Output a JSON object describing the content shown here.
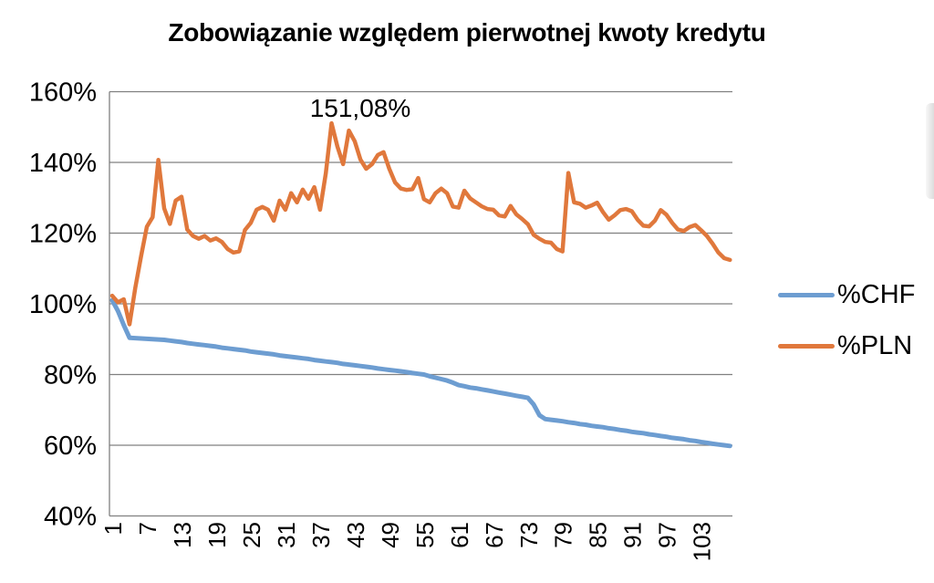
{
  "title": "Zobowiązanie względem pierwotnej kwoty kredytu",
  "colors": {
    "background": "#FFFFFF",
    "gridline": "#808080",
    "axis": "#808080",
    "text": "#000000",
    "chf_blue": "#6D9DD1",
    "pln_orange": "#E0783C"
  },
  "legend": {
    "position": "right",
    "items": [
      {
        "label": "%CHF",
        "color": "#6D9DD1"
      },
      {
        "label": "%PLN",
        "color": "#E0783C"
      }
    ]
  },
  "chart_data": {
    "type": "line",
    "title": "Zobowiązanie względem pierwotnej kwoty kredytu",
    "xlabel": "",
    "ylabel": "",
    "x_unit": "month index",
    "x_start": 1,
    "x_end": 108,
    "x_tick_labels": [
      1,
      7,
      13,
      19,
      25,
      31,
      37,
      43,
      49,
      55,
      61,
      67,
      73,
      79,
      85,
      91,
      97,
      103
    ],
    "y_tick_labels": [
      "160%",
      "140%",
      "120%",
      "100%",
      "80%",
      "60%",
      "40%"
    ],
    "y_tick_values": [
      160,
      140,
      120,
      100,
      80,
      60,
      40
    ],
    "ylim": [
      40,
      160
    ],
    "grid": "horizontal",
    "legend_position": "right",
    "annotation": {
      "text": "151,08%",
      "series": "%PLN",
      "month": 39,
      "value": 151.08
    },
    "series": [
      {
        "name": "%CHF",
        "color": "#6D9DD1",
        "stroke_width": 5,
        "values": [
          101.0,
          98.0,
          94.0,
          90.4,
          90.3,
          90.2,
          90.1,
          90.0,
          89.9,
          89.8,
          89.6,
          89.4,
          89.2,
          88.9,
          88.7,
          88.5,
          88.3,
          88.1,
          87.9,
          87.6,
          87.4,
          87.2,
          87.0,
          86.8,
          86.5,
          86.3,
          86.1,
          85.9,
          85.7,
          85.4,
          85.2,
          85.0,
          84.8,
          84.6,
          84.4,
          84.1,
          83.9,
          83.7,
          83.5,
          83.3,
          83.0,
          82.8,
          82.6,
          82.4,
          82.2,
          82.0,
          81.7,
          81.5,
          81.3,
          81.1,
          80.9,
          80.7,
          80.4,
          80.2,
          80.0,
          79.5,
          79.1,
          78.7,
          78.3,
          77.7,
          77.0,
          76.7,
          76.3,
          76.1,
          75.8,
          75.5,
          75.2,
          74.9,
          74.6,
          74.3,
          74.0,
          73.7,
          73.4,
          71.5,
          68.5,
          67.4,
          67.2,
          67.0,
          66.8,
          66.5,
          66.3,
          66.0,
          65.8,
          65.5,
          65.3,
          65.1,
          64.8,
          64.6,
          64.3,
          64.1,
          63.8,
          63.6,
          63.4,
          63.1,
          62.9,
          62.6,
          62.4,
          62.1,
          61.9,
          61.7,
          61.4,
          61.2,
          60.9,
          60.7,
          60.4,
          60.2,
          60.0,
          59.8
        ]
      },
      {
        "name": "%PLN",
        "color": "#E0783C",
        "stroke_width": 4.5,
        "values": [
          102.3,
          100.4,
          101.3,
          94.2,
          104.5,
          113.5,
          121.8,
          124.5,
          140.7,
          127.0,
          122.6,
          129.2,
          130.3,
          121.0,
          119.2,
          118.4,
          119.2,
          117.9,
          118.5,
          117.5,
          115.5,
          114.5,
          114.8,
          120.9,
          122.9,
          126.6,
          127.4,
          126.6,
          123.5,
          129.2,
          126.6,
          131.3,
          128.7,
          132.3,
          129.7,
          133.0,
          126.6,
          136.9,
          151.08,
          144.5,
          139.5,
          149.0,
          146.0,
          140.8,
          138.2,
          139.5,
          142.1,
          142.9,
          138.2,
          134.3,
          132.6,
          132.2,
          132.4,
          135.6,
          129.6,
          128.7,
          131.3,
          132.6,
          131.3,
          127.5,
          127.2,
          132.0,
          129.8,
          128.7,
          127.6,
          126.8,
          126.6,
          125.0,
          124.7,
          127.7,
          125.3,
          124.0,
          122.5,
          119.5,
          118.4,
          117.5,
          117.3,
          115.5,
          114.8,
          137.0,
          128.7,
          128.3,
          127.2,
          127.8,
          128.6,
          126.0,
          123.8,
          125.0,
          126.5,
          126.8,
          126.2,
          123.8,
          122.1,
          121.9,
          123.5,
          126.5,
          125.2,
          122.9,
          121.0,
          120.6,
          121.7,
          122.3,
          120.8,
          119.2,
          117.0,
          114.5,
          112.9,
          112.4
        ]
      }
    ]
  }
}
